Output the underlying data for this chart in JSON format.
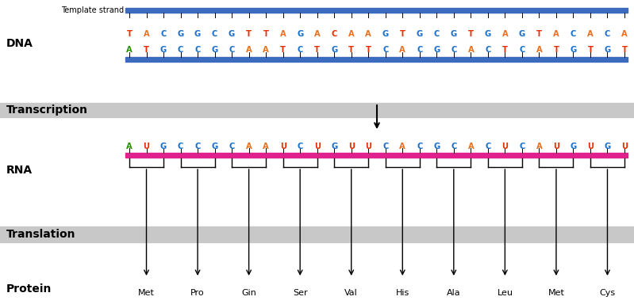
{
  "template_strand_label": "Template strand",
  "dna_label": "DNA",
  "transcription_label": "Transcription",
  "rna_label": "RNA",
  "translation_label": "Translation",
  "protein_label": "Protein",
  "nontemplate_seq": [
    "T",
    "A",
    "C",
    "G",
    "G",
    "C",
    "G",
    "T",
    "T",
    "A",
    "G",
    "A",
    "C",
    "A",
    "A",
    "G",
    "T",
    "G",
    "C",
    "G",
    "T",
    "G",
    "A",
    "G",
    "T",
    "A",
    "C",
    "A",
    "C",
    "A"
  ],
  "nontemplate_colors": [
    "#e63000",
    "#e87020",
    "#1a70c8",
    "#1a70c8",
    "#1a70c8",
    "#1a70c8",
    "#1a70c8",
    "#e63000",
    "#e63000",
    "#e87020",
    "#1a70c8",
    "#e87020",
    "#e63000",
    "#e87020",
    "#e87020",
    "#1a70c8",
    "#e63000",
    "#1a70c8",
    "#1a70c8",
    "#1a70c8",
    "#e63000",
    "#1a70c8",
    "#e87020",
    "#1a70c8",
    "#e63000",
    "#e87020",
    "#1a70c8",
    "#e87020",
    "#1a70c8",
    "#e87020"
  ],
  "template_seq": [
    "A",
    "T",
    "G",
    "C",
    "C",
    "G",
    "C",
    "A",
    "A",
    "T",
    "C",
    "T",
    "G",
    "T",
    "T",
    "C",
    "A",
    "C",
    "G",
    "C",
    "A",
    "C",
    "T",
    "C",
    "A",
    "T",
    "G",
    "T",
    "G",
    "T"
  ],
  "template_colors": [
    "#2a9000",
    "#e63000",
    "#1a70c8",
    "#1a70c8",
    "#1a70c8",
    "#1a70c8",
    "#1a70c8",
    "#e87020",
    "#e87020",
    "#e63000",
    "#1a70c8",
    "#e63000",
    "#1a70c8",
    "#e63000",
    "#e63000",
    "#1a70c8",
    "#e87020",
    "#1a70c8",
    "#1a70c8",
    "#1a70c8",
    "#e87020",
    "#1a70c8",
    "#e63000",
    "#1a70c8",
    "#e87020",
    "#e63000",
    "#1a70c8",
    "#e63000",
    "#1a70c8",
    "#e63000"
  ],
  "rna_seq": [
    "A",
    "U",
    "G",
    "C",
    "C",
    "G",
    "C",
    "A",
    "A",
    "U",
    "C",
    "U",
    "G",
    "U",
    "U",
    "C",
    "A",
    "C",
    "G",
    "C",
    "A",
    "C",
    "U",
    "C",
    "A",
    "U",
    "G",
    "U",
    "G",
    "U"
  ],
  "rna_colors": [
    "#2a9000",
    "#e63000",
    "#1a70c8",
    "#1a70c8",
    "#1a70c8",
    "#1a70c8",
    "#1a70c8",
    "#e87020",
    "#e87020",
    "#e63000",
    "#1a70c8",
    "#e63000",
    "#1a70c8",
    "#e63000",
    "#e63000",
    "#1a70c8",
    "#e87020",
    "#1a70c8",
    "#1a70c8",
    "#1a70c8",
    "#e87020",
    "#1a70c8",
    "#e63000",
    "#1a70c8",
    "#e87020",
    "#e63000",
    "#1a70c8",
    "#e63000",
    "#1a70c8",
    "#e63000"
  ],
  "amino_acids": [
    "Met",
    "Pro",
    "Gin",
    "Ser",
    "Val",
    "His",
    "Ala",
    "Leu",
    "Met",
    "Cys"
  ],
  "blue_bar_color": "#3a6bbf",
  "pink_bar_color": "#e0208c",
  "gray_band_color": "#c8c8c8",
  "background_color": "#ffffff"
}
